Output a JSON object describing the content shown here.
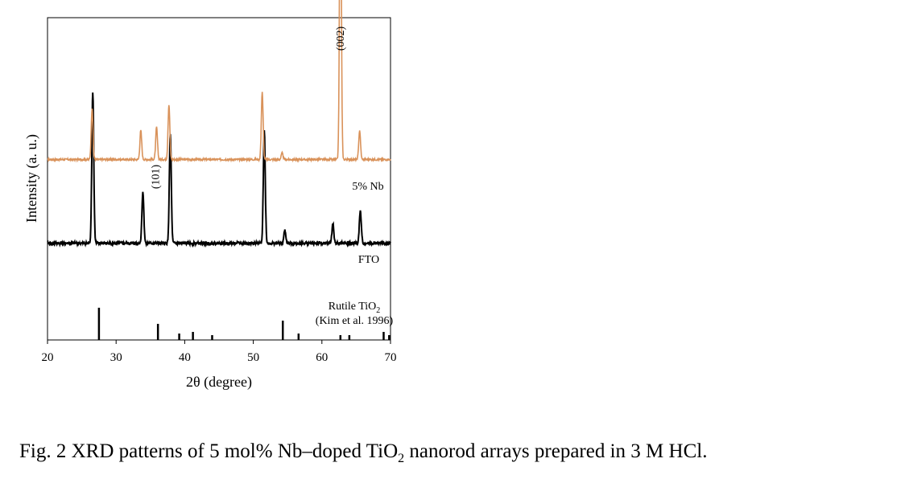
{
  "chart_data": {
    "type": "line",
    "xlabel": "2θ (degree)",
    "ylabel": "Intensity (a. u.)",
    "xlim": [
      20,
      70
    ],
    "xticks": [
      "20",
      "30",
      "40",
      "50",
      "60",
      "70"
    ],
    "y_tick_labels": false,
    "grid": false,
    "series": [
      {
        "name": "5% Nb",
        "color": "#d9925a",
        "baseline": 0.56,
        "peaks": [
          [
            26.5,
            0.16
          ],
          [
            33.6,
            0.09
          ],
          [
            35.9,
            0.1
          ],
          [
            37.7,
            0.17
          ],
          [
            51.3,
            0.21
          ],
          [
            54.2,
            0.02
          ],
          [
            62.7,
            1.0
          ],
          [
            65.5,
            0.09
          ]
        ]
      },
      {
        "name": "FTO",
        "color": "#000000",
        "baseline": 0.3,
        "peaks": [
          [
            26.6,
            0.47
          ],
          [
            33.9,
            0.16
          ],
          [
            37.9,
            0.34
          ],
          [
            51.6,
            0.35
          ],
          [
            54.6,
            0.04
          ],
          [
            61.6,
            0.06
          ],
          [
            65.6,
            0.1
          ]
        ]
      }
    ],
    "reference": {
      "name": "Rutile TiO2",
      "source": "(Kim et al. 1996)",
      "sticks": [
        [
          27.5,
          0.1
        ],
        [
          36.1,
          0.05
        ],
        [
          39.2,
          0.02
        ],
        [
          41.2,
          0.025
        ],
        [
          44.0,
          0.015
        ],
        [
          54.3,
          0.06
        ],
        [
          56.6,
          0.02
        ],
        [
          62.7,
          0.015
        ],
        [
          64.0,
          0.015
        ],
        [
          69.0,
          0.025
        ],
        [
          69.8,
          0.015
        ]
      ]
    },
    "annotations": [
      {
        "text": "(101)",
        "x": 37.2
      },
      {
        "text": "(002)",
        "x": 62.7
      }
    ],
    "series_labels": {
      "nb": "5% Nb",
      "fto": "FTO",
      "ref_line1": "Rutile TiO",
      "ref_sub": "2",
      "ref_line2": "(Kim et al. 1996)"
    }
  },
  "caption": {
    "prefix": "Fig. 2 XRD patterns of 5 mol% Nb–doped TiO",
    "sub": "2",
    "suffix": " nanorod arrays prepared in 3 M HCl."
  }
}
